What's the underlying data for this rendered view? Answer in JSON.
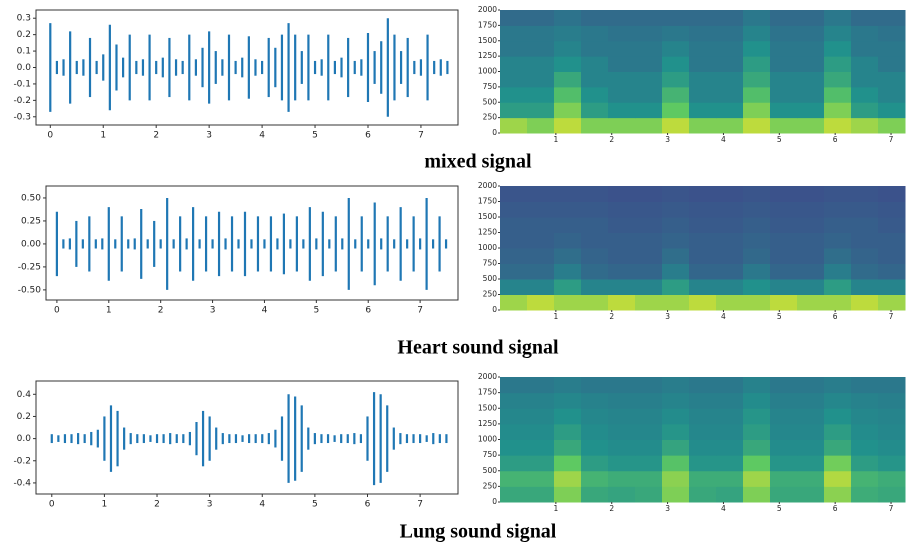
{
  "figure": {
    "captions": [
      "mixed signal",
      "Heart sound signal",
      "Lung sound signal"
    ]
  },
  "chart_data": [
    {
      "type": "waveform",
      "color": "#1f77b4",
      "x": [
        0,
        0.125,
        0.25,
        0.375,
        0.5,
        0.625,
        0.75,
        0.875,
        1,
        1.125,
        1.25,
        1.375,
        1.5,
        1.625,
        1.75,
        1.875,
        2,
        2.125,
        2.25,
        2.375,
        2.5,
        2.625,
        2.75,
        2.875,
        3,
        3.125,
        3.25,
        3.375,
        3.5,
        3.625,
        3.75,
        3.875,
        4,
        4.125,
        4.25,
        4.375,
        4.5,
        4.625,
        4.75,
        4.875,
        5,
        5.125,
        5.25,
        5.375,
        5.5,
        5.625,
        5.75,
        5.875,
        6,
        6.125,
        6.25,
        6.375,
        6.5,
        6.625,
        6.75,
        6.875,
        7,
        7.125,
        7.25,
        7.375,
        7.5
      ],
      "values": [
        0.27,
        0.04,
        0.05,
        0.22,
        0.04,
        0.05,
        0.18,
        0.04,
        0.08,
        0.26,
        0.14,
        0.06,
        0.2,
        0.04,
        0.05,
        0.2,
        0.04,
        0.06,
        0.18,
        0.05,
        0.04,
        0.2,
        0.05,
        0.12,
        0.22,
        0.1,
        0.05,
        0.2,
        0.04,
        0.06,
        0.19,
        0.05,
        0.04,
        0.18,
        0.12,
        0.2,
        0.27,
        0.2,
        0.1,
        0.2,
        0.04,
        0.05,
        0.2,
        0.04,
        0.06,
        0.18,
        0.04,
        0.05,
        0.21,
        0.1,
        0.16,
        0.3,
        0.2,
        0.1,
        0.18,
        0.04,
        0.05,
        0.2,
        0.04,
        0.05,
        0.04
      ],
      "xlim": [
        -0.27,
        7.7
      ],
      "ylim": [
        -0.35,
        0.35
      ],
      "xticks": [
        0,
        1,
        2,
        3,
        4,
        5,
        6,
        7
      ],
      "yticks": [
        0.3,
        0.2,
        0.1,
        {
          "value": 0,
          "label": "0.0"
        },
        -0.1,
        -0.2,
        -0.3
      ]
    },
    {
      "type": "heatmap",
      "colormap": "viridis",
      "values": [
        [
          0.85,
          0.8,
          0.9,
          0.8,
          0.8,
          0.8,
          0.9,
          0.8,
          0.8,
          0.9,
          0.8,
          0.8,
          0.9,
          0.85,
          0.8
        ],
        [
          0.55,
          0.55,
          0.8,
          0.55,
          0.5,
          0.5,
          0.75,
          0.5,
          0.5,
          0.8,
          0.5,
          0.5,
          0.8,
          0.55,
          0.5
        ],
        [
          0.5,
          0.5,
          0.7,
          0.5,
          0.45,
          0.45,
          0.65,
          0.45,
          0.45,
          0.7,
          0.45,
          0.45,
          0.7,
          0.5,
          0.45
        ],
        [
          0.45,
          0.45,
          0.6,
          0.45,
          0.45,
          0.45,
          0.55,
          0.45,
          0.45,
          0.6,
          0.45,
          0.45,
          0.6,
          0.45,
          0.45
        ],
        [
          0.45,
          0.45,
          0.5,
          0.45,
          0.4,
          0.4,
          0.5,
          0.4,
          0.4,
          0.55,
          0.4,
          0.4,
          0.55,
          0.45,
          0.4
        ],
        [
          0.4,
          0.4,
          0.45,
          0.4,
          0.4,
          0.4,
          0.45,
          0.4,
          0.4,
          0.5,
          0.4,
          0.4,
          0.5,
          0.4,
          0.4
        ],
        [
          0.4,
          0.4,
          0.42,
          0.4,
          0.38,
          0.38,
          0.4,
          0.38,
          0.38,
          0.45,
          0.38,
          0.38,
          0.45,
          0.4,
          0.38
        ],
        [
          0.35,
          0.35,
          0.38,
          0.35,
          0.35,
          0.35,
          0.35,
          0.35,
          0.35,
          0.4,
          0.35,
          0.35,
          0.4,
          0.35,
          0.35
        ]
      ],
      "xlim": [
        0,
        7.25
      ],
      "ylim": [
        0,
        2000
      ],
      "xticks": [
        1,
        2,
        3,
        4,
        5,
        6,
        7
      ],
      "yticks": [
        0,
        250,
        500,
        750,
        1000,
        1250,
        1500,
        1750,
        2000
      ]
    },
    {
      "type": "waveform",
      "color": "#1f77b4",
      "x": [
        0,
        0.125,
        0.25,
        0.375,
        0.5,
        0.625,
        0.75,
        0.875,
        1,
        1.125,
        1.25,
        1.375,
        1.5,
        1.625,
        1.75,
        1.875,
        2,
        2.125,
        2.25,
        2.375,
        2.5,
        2.625,
        2.75,
        2.875,
        3,
        3.125,
        3.25,
        3.375,
        3.5,
        3.625,
        3.75,
        3.875,
        4,
        4.125,
        4.25,
        4.375,
        4.5,
        4.625,
        4.75,
        4.875,
        5,
        5.125,
        5.25,
        5.375,
        5.5,
        5.625,
        5.75,
        5.875,
        6,
        6.125,
        6.25,
        6.375,
        6.5,
        6.625,
        6.75,
        6.875,
        7,
        7.125,
        7.25,
        7.375,
        7.5
      ],
      "values": [
        0.35,
        0.05,
        0.06,
        0.25,
        0.05,
        0.3,
        0.05,
        0.06,
        0.4,
        0.05,
        0.3,
        0.05,
        0.06,
        0.38,
        0.05,
        0.25,
        0.05,
        0.5,
        0.05,
        0.3,
        0.06,
        0.4,
        0.05,
        0.3,
        0.05,
        0.35,
        0.06,
        0.3,
        0.05,
        0.35,
        0.05,
        0.3,
        0.05,
        0.3,
        0.06,
        0.33,
        0.05,
        0.3,
        0.05,
        0.4,
        0.06,
        0.35,
        0.05,
        0.3,
        0.06,
        0.5,
        0.05,
        0.3,
        0.05,
        0.45,
        0.06,
        0.3,
        0.05,
        0.4,
        0.05,
        0.3,
        0.06,
        0.5,
        0.05,
        0.3,
        0.05
      ],
      "xlim": [
        -0.21,
        7.73
      ],
      "ylim": [
        -0.61,
        0.63
      ],
      "xticks": [
        0,
        1,
        2,
        3,
        4,
        5,
        6,
        7
      ],
      "yticks": [
        {
          "value": 0.5,
          "label": "0.50"
        },
        0.25,
        {
          "value": 0,
          "label": "0.00"
        },
        -0.25,
        {
          "value": -0.5,
          "label": "-0.50"
        }
      ]
    },
    {
      "type": "heatmap",
      "colormap": "viridis",
      "values": [
        [
          0.85,
          0.9,
          0.85,
          0.85,
          0.9,
          0.85,
          0.85,
          0.9,
          0.85,
          0.85,
          0.9,
          0.85,
          0.85,
          0.9,
          0.85
        ],
        [
          0.45,
          0.45,
          0.55,
          0.45,
          0.45,
          0.45,
          0.55,
          0.45,
          0.45,
          0.5,
          0.45,
          0.45,
          0.55,
          0.45,
          0.45
        ],
        [
          0.35,
          0.35,
          0.42,
          0.35,
          0.33,
          0.33,
          0.42,
          0.33,
          0.33,
          0.4,
          0.33,
          0.33,
          0.42,
          0.35,
          0.33
        ],
        [
          0.32,
          0.32,
          0.36,
          0.32,
          0.3,
          0.3,
          0.36,
          0.3,
          0.3,
          0.34,
          0.3,
          0.3,
          0.36,
          0.32,
          0.3
        ],
        [
          0.3,
          0.3,
          0.32,
          0.3,
          0.3,
          0.3,
          0.32,
          0.3,
          0.3,
          0.32,
          0.3,
          0.3,
          0.32,
          0.3,
          0.3
        ],
        [
          0.3,
          0.3,
          0.3,
          0.3,
          0.28,
          0.28,
          0.3,
          0.28,
          0.28,
          0.3,
          0.28,
          0.28,
          0.3,
          0.3,
          0.28
        ],
        [
          0.28,
          0.28,
          0.28,
          0.28,
          0.27,
          0.27,
          0.28,
          0.27,
          0.27,
          0.28,
          0.27,
          0.27,
          0.28,
          0.28,
          0.27
        ],
        [
          0.26,
          0.26,
          0.26,
          0.26,
          0.25,
          0.25,
          0.26,
          0.25,
          0.25,
          0.26,
          0.25,
          0.25,
          0.26,
          0.26,
          0.25
        ]
      ],
      "xlim": [
        0,
        7.25
      ],
      "ylim": [
        0,
        2000
      ],
      "xticks": [
        1,
        2,
        3,
        4,
        5,
        6,
        7
      ],
      "yticks": [
        0,
        250,
        500,
        750,
        1000,
        1250,
        1500,
        1750,
        2000
      ]
    },
    {
      "type": "waveform",
      "color": "#1f77b4",
      "x": [
        0,
        0.125,
        0.25,
        0.375,
        0.5,
        0.625,
        0.75,
        0.875,
        1,
        1.125,
        1.25,
        1.375,
        1.5,
        1.625,
        1.75,
        1.875,
        2,
        2.125,
        2.25,
        2.375,
        2.5,
        2.625,
        2.75,
        2.875,
        3,
        3.125,
        3.25,
        3.375,
        3.5,
        3.625,
        3.75,
        3.875,
        4,
        4.125,
        4.25,
        4.375,
        4.5,
        4.625,
        4.75,
        4.875,
        5,
        5.125,
        5.25,
        5.375,
        5.5,
        5.625,
        5.75,
        5.875,
        6,
        6.125,
        6.25,
        6.375,
        6.5,
        6.625,
        6.75,
        6.875,
        7,
        7.125,
        7.25,
        7.375,
        7.5
      ],
      "values": [
        0.04,
        0.03,
        0.04,
        0.04,
        0.05,
        0.04,
        0.06,
        0.08,
        0.2,
        0.3,
        0.25,
        0.1,
        0.05,
        0.04,
        0.04,
        0.03,
        0.04,
        0.04,
        0.05,
        0.04,
        0.04,
        0.06,
        0.15,
        0.25,
        0.2,
        0.1,
        0.05,
        0.04,
        0.04,
        0.03,
        0.04,
        0.04,
        0.04,
        0.05,
        0.08,
        0.2,
        0.4,
        0.38,
        0.3,
        0.1,
        0.05,
        0.04,
        0.04,
        0.03,
        0.04,
        0.04,
        0.05,
        0.04,
        0.2,
        0.42,
        0.4,
        0.3,
        0.1,
        0.05,
        0.04,
        0.04,
        0.04,
        0.03,
        0.05,
        0.04,
        0.04
      ],
      "xlim": [
        -0.3,
        7.72
      ],
      "ylim": [
        -0.5,
        0.52
      ],
      "xticks": [
        0,
        1,
        2,
        3,
        4,
        5,
        6,
        7
      ],
      "yticks": [
        0.4,
        0.2,
        {
          "value": 0,
          "label": "0.0"
        },
        -0.2,
        -0.4
      ]
    },
    {
      "type": "heatmap",
      "colormap": "viridis",
      "values": [
        [
          0.6,
          0.6,
          0.8,
          0.6,
          0.58,
          0.6,
          0.8,
          0.6,
          0.58,
          0.8,
          0.6,
          0.6,
          0.82,
          0.62,
          0.6
        ],
        [
          0.65,
          0.65,
          0.85,
          0.65,
          0.62,
          0.62,
          0.82,
          0.62,
          0.62,
          0.85,
          0.62,
          0.62,
          0.88,
          0.65,
          0.62
        ],
        [
          0.55,
          0.55,
          0.75,
          0.55,
          0.52,
          0.52,
          0.72,
          0.52,
          0.52,
          0.75,
          0.52,
          0.52,
          0.78,
          0.55,
          0.52
        ],
        [
          0.5,
          0.5,
          0.6,
          0.5,
          0.48,
          0.48,
          0.58,
          0.48,
          0.48,
          0.6,
          0.48,
          0.48,
          0.6,
          0.5,
          0.48
        ],
        [
          0.48,
          0.48,
          0.55,
          0.48,
          0.46,
          0.46,
          0.52,
          0.46,
          0.46,
          0.55,
          0.46,
          0.46,
          0.55,
          0.48,
          0.46
        ],
        [
          0.46,
          0.46,
          0.5,
          0.46,
          0.45,
          0.45,
          0.48,
          0.45,
          0.45,
          0.52,
          0.45,
          0.45,
          0.5,
          0.46,
          0.45
        ],
        [
          0.44,
          0.44,
          0.46,
          0.44,
          0.43,
          0.43,
          0.45,
          0.43,
          0.43,
          0.48,
          0.43,
          0.43,
          0.46,
          0.44,
          0.43
        ],
        [
          0.4,
          0.4,
          0.42,
          0.4,
          0.4,
          0.4,
          0.42,
          0.4,
          0.4,
          0.44,
          0.4,
          0.4,
          0.42,
          0.4,
          0.4
        ]
      ],
      "xlim": [
        0,
        7.25
      ],
      "ylim": [
        0,
        2000
      ],
      "xticks": [
        1,
        2,
        3,
        4,
        5,
        6,
        7
      ],
      "yticks": [
        0,
        250,
        500,
        750,
        1000,
        1250,
        1500,
        1750,
        2000
      ]
    }
  ]
}
